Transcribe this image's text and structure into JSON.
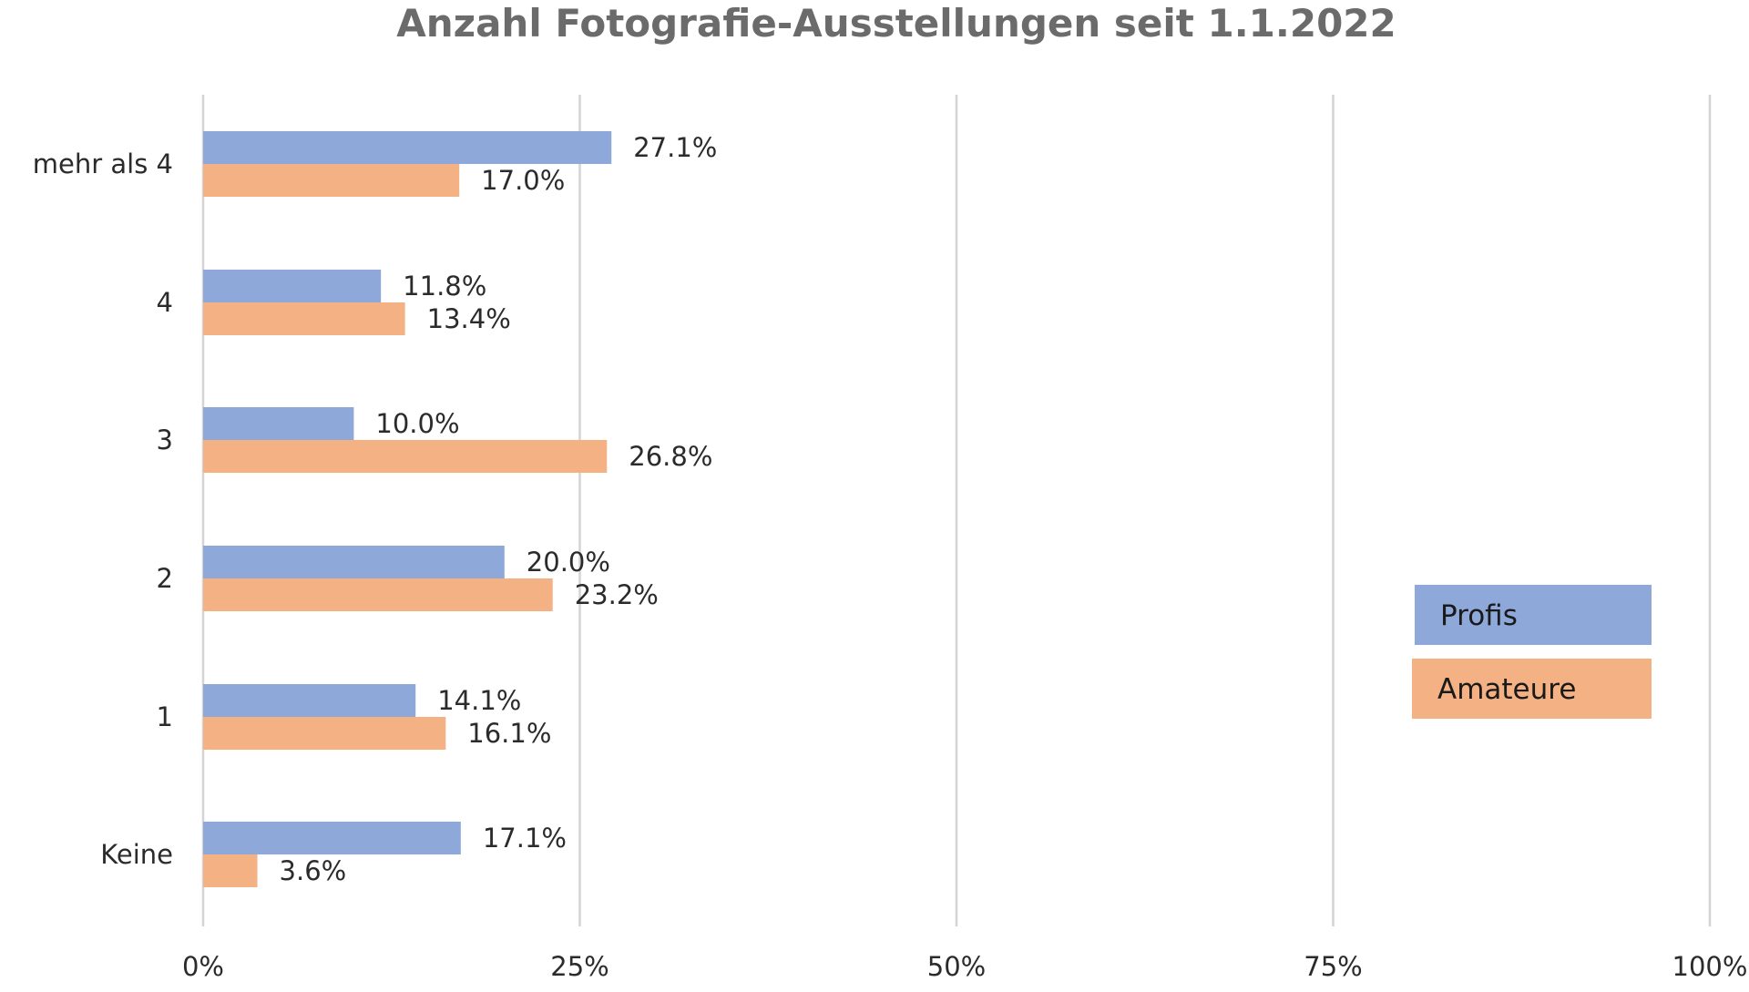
{
  "chart_data": {
    "type": "bar",
    "orientation": "horizontal",
    "title": "Anzahl Fotografie-Ausstellungen seit 1.1.2022",
    "categories": [
      "mehr als 4",
      "4",
      "3",
      "2",
      "1",
      "Keine"
    ],
    "series": [
      {
        "name": "Profis",
        "color": "#8fa8da",
        "values": [
          27.1,
          11.8,
          10.0,
          20.0,
          14.1,
          17.1
        ],
        "labels": [
          "27.1%",
          "11.8%",
          "10.0%",
          "20.0%",
          "14.1%",
          "17.1%"
        ]
      },
      {
        "name": "Amateure",
        "color": "#f4b183",
        "values": [
          17.0,
          13.4,
          26.8,
          23.2,
          16.1,
          3.6
        ],
        "labels": [
          "17.0%",
          "13.4%",
          "26.8%",
          "23.2%",
          "16.1%",
          "3.6%"
        ]
      }
    ],
    "xlim": [
      0,
      100
    ],
    "xticks": [
      0,
      25,
      50,
      75,
      100
    ],
    "xtick_labels": [
      "0%",
      "25%",
      "50%",
      "75%",
      "100%"
    ],
    "xlabel": "",
    "ylabel": "",
    "grid": "vertical",
    "legend_position": "right"
  }
}
